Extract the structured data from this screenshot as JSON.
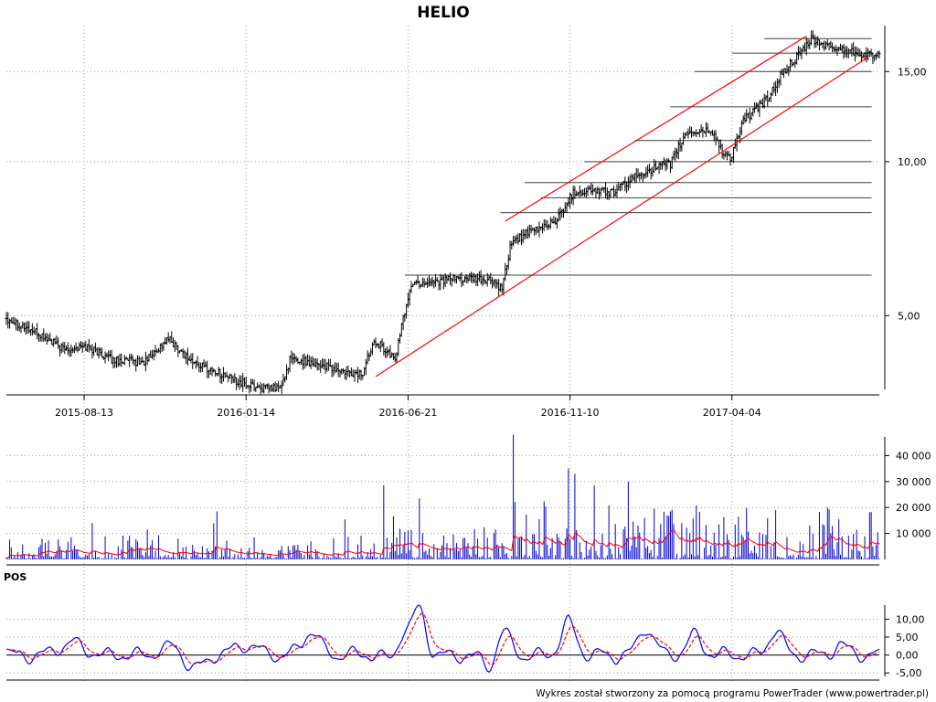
{
  "page": {
    "footer": "Wykres został stworzony za pomocą programu PowerTrader (www.powertrader.pl)"
  },
  "colors": {
    "candle": "#000000",
    "volume": "#0000cc",
    "channel": "#ff0000",
    "pos_line": "#0000ff",
    "pos_signal": "#ff0000",
    "level_line": "#404040"
  },
  "chart_data": [
    {
      "type": "ohlc",
      "title": "HELIO",
      "scale": "log",
      "ylim": [
        3.5,
        18.0
      ],
      "y_ticks": [
        {
          "value": 5,
          "label": "5,00"
        },
        {
          "value": 10,
          "label": "10,00"
        },
        {
          "value": 15,
          "label": "15,00"
        }
      ],
      "x_ticks": [
        "2015-08-13",
        "2016-01-14",
        "2016-06-21",
        "2016-11-10",
        "2017-04-04"
      ],
      "grid": true,
      "anchors": [
        [
          0,
          4.95
        ],
        [
          20,
          4.6
        ],
        [
          35,
          4.3
        ],
        [
          50,
          4.35
        ],
        [
          65,
          4.1
        ],
        [
          85,
          4.05
        ],
        [
          100,
          4.5
        ],
        [
          115,
          4.05
        ],
        [
          128,
          3.9
        ],
        [
          140,
          3.75
        ],
        [
          150,
          3.65
        ],
        [
          160,
          3.6
        ],
        [
          170,
          3.62
        ],
        [
          175,
          4.1
        ],
        [
          190,
          4.05
        ],
        [
          210,
          3.85
        ],
        [
          220,
          3.85
        ],
        [
          227,
          4.5
        ],
        [
          240,
          4.1
        ],
        [
          250,
          5.75
        ],
        [
          265,
          5.85
        ],
        [
          280,
          5.9
        ],
        [
          300,
          5.85
        ],
        [
          306,
          5.6
        ],
        [
          312,
          7.0
        ],
        [
          325,
          7.3
        ],
        [
          340,
          7.7
        ],
        [
          350,
          8.7
        ],
        [
          362,
          8.8
        ],
        [
          375,
          8.7
        ],
        [
          385,
          9.2
        ],
        [
          395,
          9.6
        ],
        [
          410,
          9.9
        ],
        [
          420,
          11.4
        ],
        [
          435,
          11.5
        ],
        [
          442,
          10.5
        ],
        [
          447,
          10.1
        ],
        [
          455,
          12.0
        ],
        [
          470,
          13.3
        ],
        [
          480,
          15.0
        ],
        [
          490,
          16.2
        ],
        [
          497,
          17.3
        ],
        [
          510,
          16.7
        ],
        [
          520,
          16.5
        ],
        [
          530,
          16.2
        ]
      ],
      "levels": [
        {
          "value": 17.4,
          "from": 468,
          "to": 532
        },
        {
          "value": 16.3,
          "from": 448,
          "to": 532
        },
        {
          "value": 15.0,
          "from": 425,
          "to": 532
        },
        {
          "value": 12.8,
          "from": 410,
          "to": 532
        },
        {
          "value": 11.0,
          "from": 388,
          "to": 532
        },
        {
          "value": 10.0,
          "from": 357,
          "to": 532
        },
        {
          "value": 9.1,
          "from": 320,
          "to": 532
        },
        {
          "value": 8.5,
          "from": 330,
          "to": 532
        },
        {
          "value": 7.95,
          "from": 305,
          "to": 532
        },
        {
          "value": 6.0,
          "from": 246,
          "to": 532
        }
      ],
      "channel": [
        {
          "from": [
            228,
            3.8
          ],
          "to": [
            532,
            16.0
          ]
        },
        {
          "from": [
            308,
            7.65
          ],
          "to": [
            494,
            17.6
          ]
        }
      ]
    },
    {
      "type": "bar",
      "name": "volume",
      "ylim": [
        0,
        50000
      ],
      "y_ticks": [
        {
          "value": 10000,
          "label": "10 000"
        },
        {
          "value": 20000,
          "label": "20 000"
        },
        {
          "value": 30000,
          "label": "30 000"
        },
        {
          "value": 40000,
          "label": "40 000"
        }
      ],
      "spikes": [
        [
          130,
          18500
        ],
        [
          233,
          28500
        ],
        [
          255,
          23500
        ],
        [
          313,
          48000
        ],
        [
          347,
          35000
        ],
        [
          351,
          33000
        ],
        [
          363,
          28500
        ],
        [
          384,
          30000
        ],
        [
          410,
          18500
        ],
        [
          475,
          19000
        ]
      ]
    },
    {
      "type": "line",
      "panel_label": "POS",
      "ylim": [
        -7,
        17
      ],
      "y_ticks": [
        {
          "value": 10,
          "label": "10,00"
        },
        {
          "value": 5,
          "label": "5,00"
        },
        {
          "value": 0,
          "label": "0,00"
        },
        {
          "value": -5,
          "label": "-5,00"
        }
      ]
    }
  ]
}
